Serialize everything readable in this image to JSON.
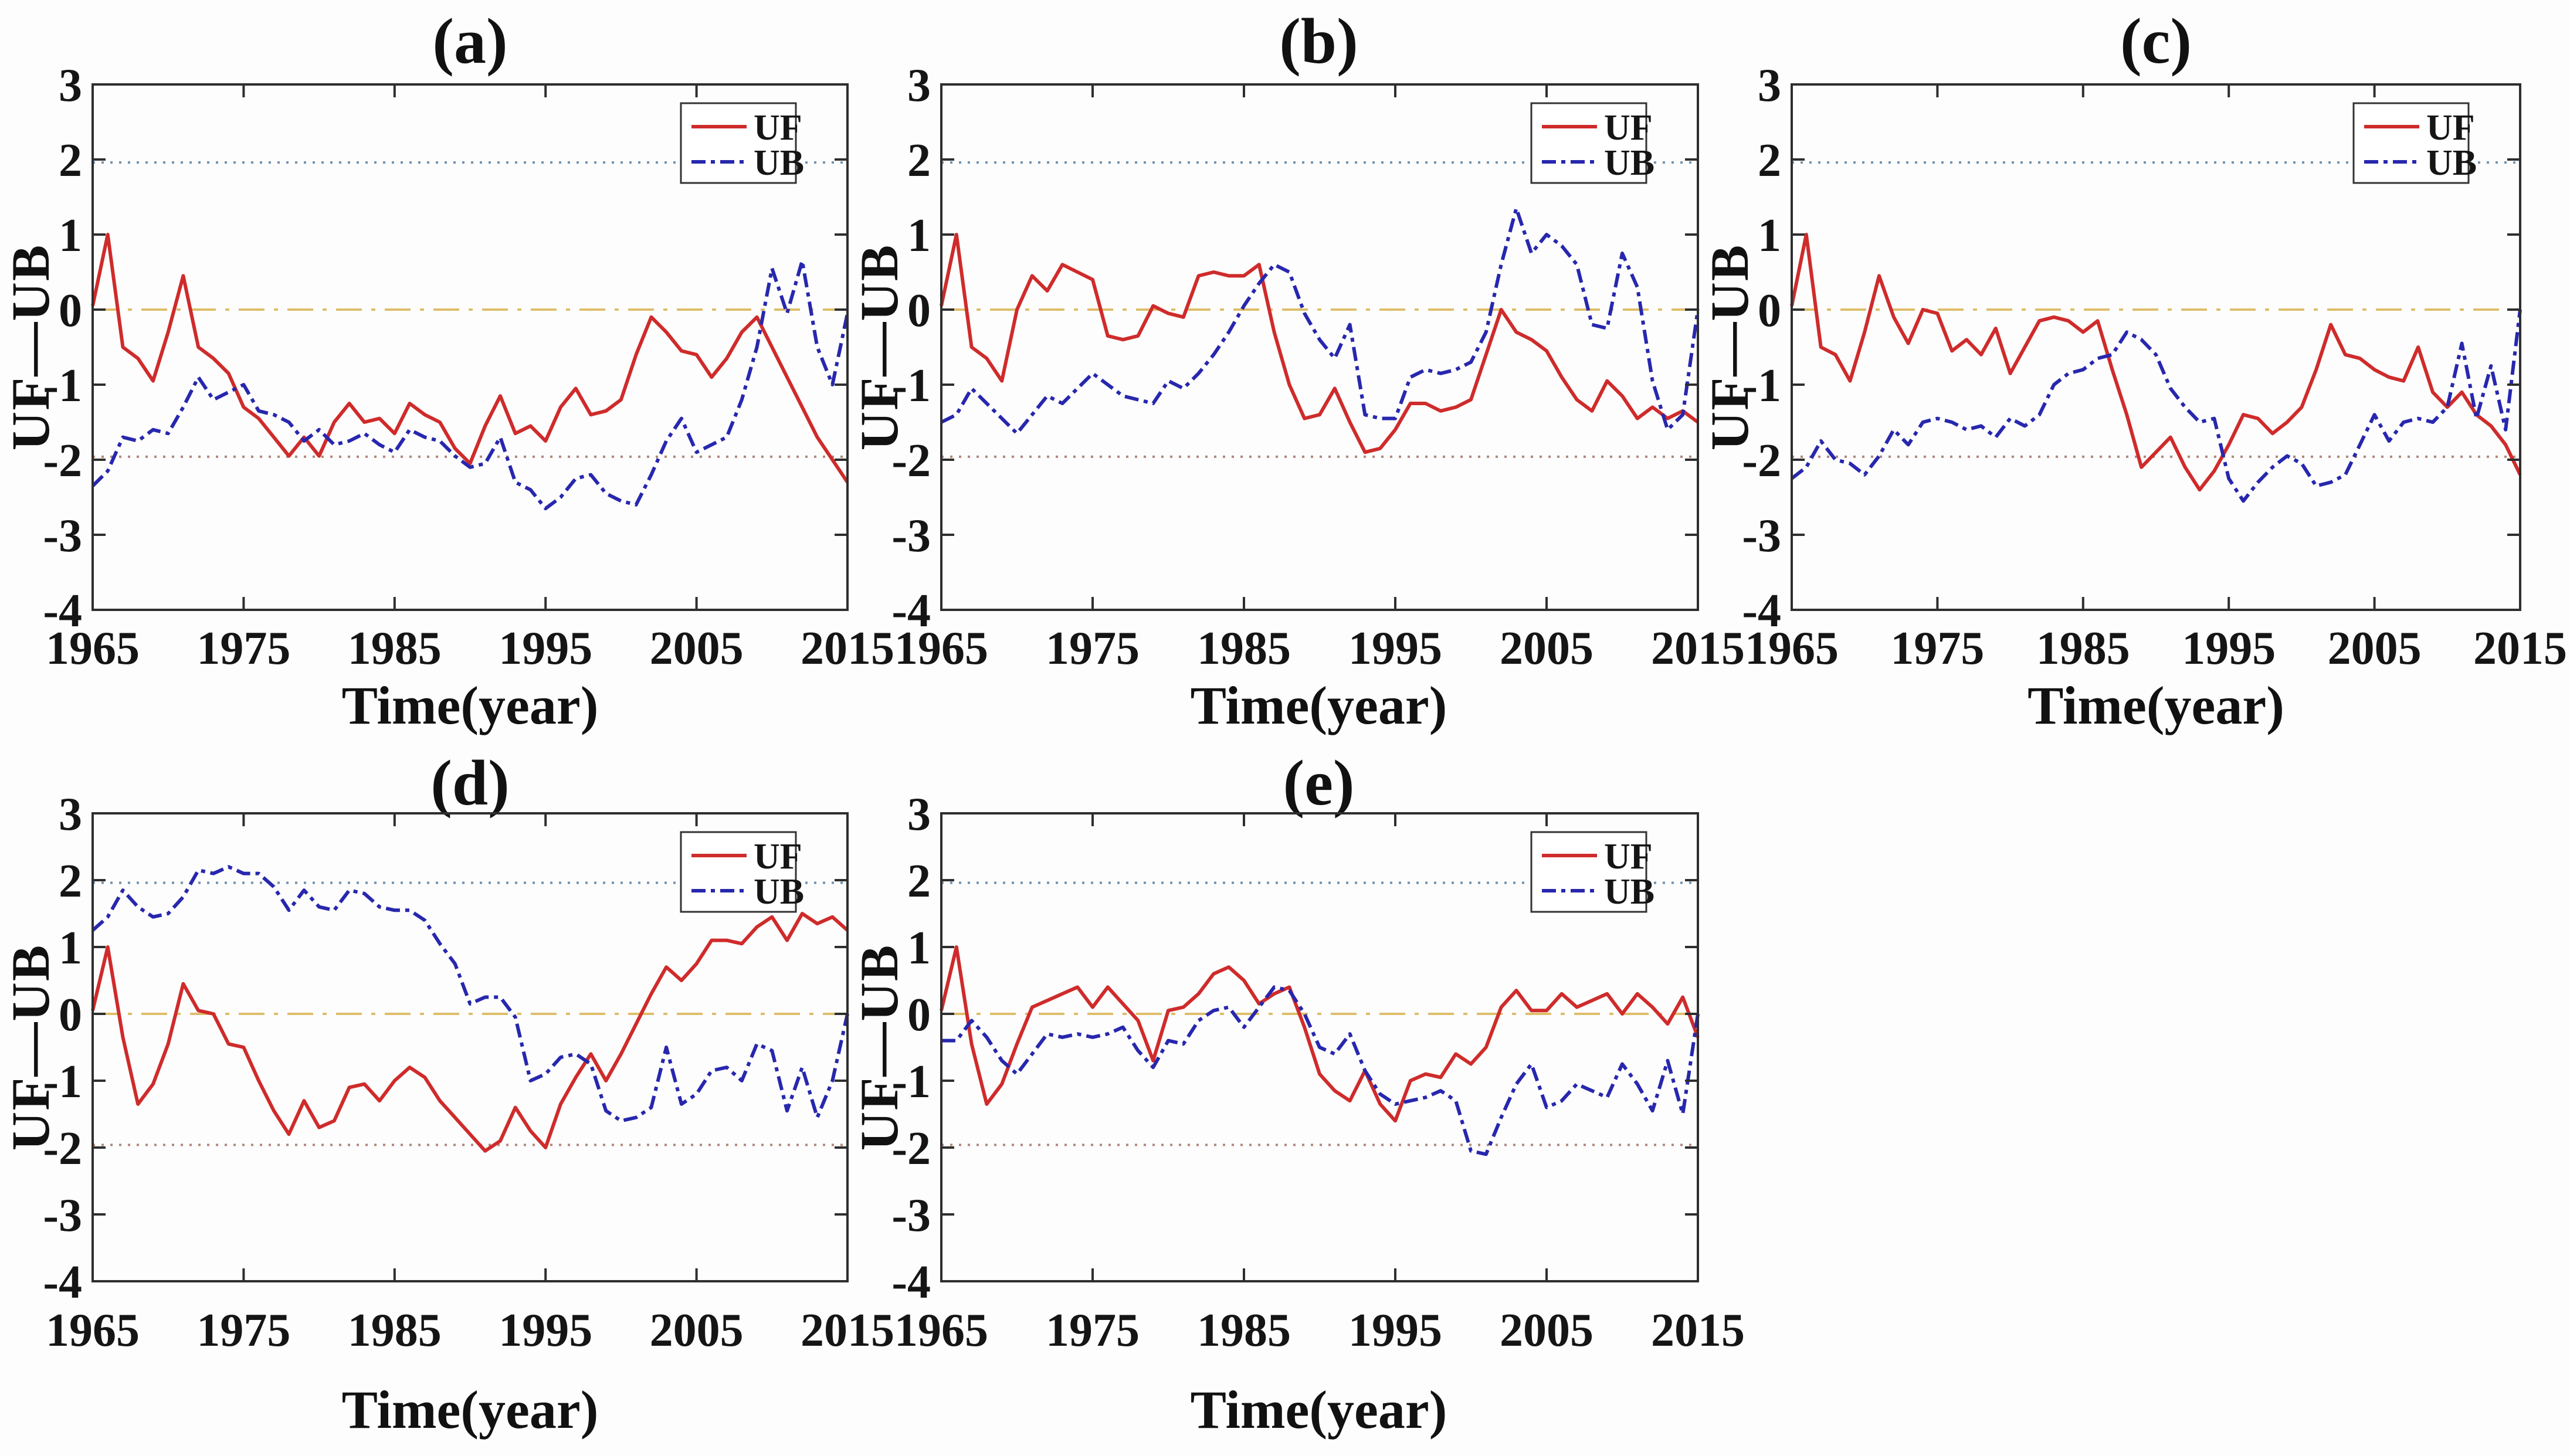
{
  "figure": {
    "background": "#fdfdfd",
    "xlabel": "Time(year)",
    "ylabel": "UF—UB",
    "legend_labels": [
      "UF",
      "UB"
    ],
    "colors": {
      "uf": "#cf2b2b",
      "ub": "#2727ae",
      "zero_line": "#ddbe6a",
      "upper_ref": "#7191ae",
      "lower_ref": "#b08878",
      "axis": "#2e2e2e",
      "text": "#151515",
      "legend_border": "#333333",
      "legend_bg": "#ffffff"
    },
    "axes": {
      "xlim": [
        1965,
        2015
      ],
      "ylim": [
        -4,
        3
      ],
      "xticks": [
        1965,
        1975,
        1985,
        1995,
        2005,
        2015
      ],
      "yticks": [
        3,
        2,
        1,
        0,
        -1,
        -2,
        -3,
        -4
      ],
      "ref_lines": [
        1.96,
        0,
        -1.96
      ],
      "grid": false
    },
    "panels": [
      {
        "label": "(a)"
      },
      {
        "label": "(b)"
      },
      {
        "label": "(c)"
      },
      {
        "label": "(d)"
      },
      {
        "label": "(e)"
      }
    ]
  },
  "chart_data": [
    {
      "type": "line",
      "title": "(a)",
      "xlabel": "Time(year)",
      "ylabel": "UF—UB",
      "xlim": [
        1965,
        2015
      ],
      "ylim": [
        -4,
        3
      ],
      "xticks": [
        1965,
        1975,
        1985,
        1995,
        2005,
        2015
      ],
      "yticks": [
        3,
        2,
        1,
        0,
        -1,
        -2,
        -3,
        -4
      ],
      "ref_lines": [
        1.96,
        0,
        -1.96
      ],
      "legend_position": "top-right",
      "x": [
        1965,
        1966,
        1967,
        1968,
        1969,
        1970,
        1971,
        1972,
        1973,
        1974,
        1975,
        1976,
        1977,
        1978,
        1979,
        1980,
        1981,
        1982,
        1983,
        1984,
        1985,
        1986,
        1987,
        1988,
        1989,
        1990,
        1991,
        1992,
        1993,
        1994,
        1995,
        1996,
        1997,
        1998,
        1999,
        2000,
        2001,
        2002,
        2003,
        2004,
        2005,
        2006,
        2007,
        2008,
        2009,
        2010,
        2011,
        2012,
        2013,
        2014,
        2015
      ],
      "series": [
        {
          "name": "UF",
          "style": "solid",
          "color": "#cf2b2b",
          "values": [
            0.05,
            1.0,
            -0.5,
            -0.65,
            -0.95,
            -0.3,
            0.45,
            -0.5,
            -0.65,
            -0.85,
            -1.3,
            -1.45,
            -1.7,
            -1.95,
            -1.7,
            -1.95,
            -1.5,
            -1.25,
            -1.5,
            -1.45,
            -1.65,
            -1.25,
            -1.4,
            -1.5,
            -1.85,
            -2.05,
            -1.55,
            -1.15,
            -1.65,
            -1.55,
            -1.75,
            -1.3,
            -1.05,
            -1.4,
            -1.35,
            -1.2,
            -0.6,
            -0.1,
            -0.3,
            -0.55,
            -0.6,
            -0.9,
            -0.65,
            -0.3,
            -0.1,
            -0.5,
            -0.9,
            -1.3,
            -1.7,
            -2.0,
            -2.3
          ]
        },
        {
          "name": "UB",
          "style": "dash-dot",
          "color": "#2727ae",
          "values": [
            -2.35,
            -2.15,
            -1.7,
            -1.75,
            -1.6,
            -1.65,
            -1.3,
            -0.9,
            -1.2,
            -1.1,
            -1.0,
            -1.35,
            -1.4,
            -1.5,
            -1.75,
            -1.6,
            -1.8,
            -1.75,
            -1.65,
            -1.8,
            -1.9,
            -1.6,
            -1.7,
            -1.75,
            -1.95,
            -2.1,
            -2.05,
            -1.7,
            -2.3,
            -2.4,
            -2.65,
            -2.5,
            -2.25,
            -2.2,
            -2.45,
            -2.55,
            -2.6,
            -2.2,
            -1.75,
            -1.45,
            -1.9,
            -1.8,
            -1.7,
            -1.2,
            -0.5,
            0.55,
            -0.05,
            0.65,
            -0.5,
            -1.0,
            -0.05
          ]
        }
      ]
    },
    {
      "type": "line",
      "title": "(b)",
      "xlabel": "Time(year)",
      "ylabel": "UF—UB",
      "xlim": [
        1965,
        2015
      ],
      "ylim": [
        -4,
        3
      ],
      "xticks": [
        1965,
        1975,
        1985,
        1995,
        2005,
        2015
      ],
      "yticks": [
        3,
        2,
        1,
        0,
        -1,
        -2,
        -3,
        -4
      ],
      "ref_lines": [
        1.96,
        0,
        -1.96
      ],
      "legend_position": "top-right",
      "x": [
        1965,
        1966,
        1967,
        1968,
        1969,
        1970,
        1971,
        1972,
        1973,
        1974,
        1975,
        1976,
        1977,
        1978,
        1979,
        1980,
        1981,
        1982,
        1983,
        1984,
        1985,
        1986,
        1987,
        1988,
        1989,
        1990,
        1991,
        1992,
        1993,
        1994,
        1995,
        1996,
        1997,
        1998,
        1999,
        2000,
        2001,
        2002,
        2003,
        2004,
        2005,
        2006,
        2007,
        2008,
        2009,
        2010,
        2011,
        2012,
        2013,
        2014,
        2015
      ],
      "series": [
        {
          "name": "UF",
          "style": "solid",
          "color": "#cf2b2b",
          "values": [
            0.05,
            1.0,
            -0.5,
            -0.65,
            -0.95,
            0.0,
            0.45,
            0.25,
            0.6,
            0.5,
            0.4,
            -0.35,
            -0.4,
            -0.35,
            0.05,
            -0.05,
            -0.1,
            0.45,
            0.5,
            0.45,
            0.45,
            0.6,
            -0.3,
            -1.0,
            -1.45,
            -1.4,
            -1.05,
            -1.5,
            -1.9,
            -1.85,
            -1.6,
            -1.25,
            -1.25,
            -1.35,
            -1.3,
            -1.2,
            -0.6,
            0.0,
            -0.3,
            -0.4,
            -0.55,
            -0.9,
            -1.2,
            -1.35,
            -0.95,
            -1.15,
            -1.45,
            -1.3,
            -1.45,
            -1.35,
            -1.5
          ]
        },
        {
          "name": "UB",
          "style": "dash-dot",
          "color": "#2727ae",
          "values": [
            -1.5,
            -1.4,
            -1.05,
            -1.25,
            -1.45,
            -1.65,
            -1.4,
            -1.15,
            -1.25,
            -1.05,
            -0.85,
            -1.0,
            -1.15,
            -1.2,
            -1.25,
            -0.95,
            -1.05,
            -0.85,
            -0.6,
            -0.3,
            0.05,
            0.35,
            0.6,
            0.5,
            -0.05,
            -0.4,
            -0.65,
            -0.2,
            -1.4,
            -1.45,
            -1.45,
            -0.9,
            -0.8,
            -0.85,
            -0.8,
            -0.7,
            -0.3,
            0.6,
            1.35,
            0.75,
            1.0,
            0.85,
            0.6,
            -0.2,
            -0.25,
            0.75,
            0.3,
            -0.95,
            -1.6,
            -1.4,
            0.0
          ]
        }
      ]
    },
    {
      "type": "line",
      "title": "(c)",
      "xlabel": "Time(year)",
      "ylabel": "UF—UB",
      "xlim": [
        1965,
        2015
      ],
      "ylim": [
        -4,
        3
      ],
      "xticks": [
        1965,
        1975,
        1985,
        1995,
        2005,
        2015
      ],
      "yticks": [
        3,
        2,
        1,
        0,
        -1,
        -2,
        -3,
        -4
      ],
      "ref_lines": [
        1.96,
        0,
        -1.96
      ],
      "legend_position": "top-right",
      "x": [
        1965,
        1966,
        1967,
        1968,
        1969,
        1970,
        1971,
        1972,
        1973,
        1974,
        1975,
        1976,
        1977,
        1978,
        1979,
        1980,
        1981,
        1982,
        1983,
        1984,
        1985,
        1986,
        1987,
        1988,
        1989,
        1990,
        1991,
        1992,
        1993,
        1994,
        1995,
        1996,
        1997,
        1998,
        1999,
        2000,
        2001,
        2002,
        2003,
        2004,
        2005,
        2006,
        2007,
        2008,
        2009,
        2010,
        2011,
        2012,
        2013,
        2014,
        2015
      ],
      "series": [
        {
          "name": "UF",
          "style": "solid",
          "color": "#cf2b2b",
          "values": [
            0.05,
            1.0,
            -0.5,
            -0.6,
            -0.95,
            -0.3,
            0.45,
            -0.1,
            -0.45,
            0.0,
            -0.05,
            -0.55,
            -0.4,
            -0.6,
            -0.25,
            -0.85,
            -0.5,
            -0.15,
            -0.1,
            -0.15,
            -0.3,
            -0.15,
            -0.8,
            -1.4,
            -2.1,
            -1.9,
            -1.7,
            -2.1,
            -2.4,
            -2.15,
            -1.8,
            -1.4,
            -1.45,
            -1.65,
            -1.5,
            -1.3,
            -0.8,
            -0.2,
            -0.6,
            -0.65,
            -0.8,
            -0.9,
            -0.95,
            -0.5,
            -1.1,
            -1.3,
            -1.1,
            -1.4,
            -1.55,
            -1.8,
            -2.2
          ]
        },
        {
          "name": "UB",
          "style": "dash-dot",
          "color": "#2727ae",
          "values": [
            -2.25,
            -2.1,
            -1.75,
            -2.0,
            -2.05,
            -2.2,
            -1.95,
            -1.6,
            -1.8,
            -1.5,
            -1.45,
            -1.5,
            -1.6,
            -1.55,
            -1.7,
            -1.45,
            -1.55,
            -1.4,
            -1.0,
            -0.85,
            -0.8,
            -0.65,
            -0.6,
            -0.3,
            -0.4,
            -0.6,
            -1.05,
            -1.3,
            -1.5,
            -1.45,
            -2.25,
            -2.55,
            -2.3,
            -2.1,
            -1.95,
            -2.05,
            -2.35,
            -2.3,
            -2.2,
            -1.8,
            -1.4,
            -1.75,
            -1.5,
            -1.45,
            -1.5,
            -1.3,
            -0.45,
            -1.45,
            -0.75,
            -1.6,
            0.0
          ]
        }
      ]
    },
    {
      "type": "line",
      "title": "(d)",
      "xlabel": "Time(year)",
      "ylabel": "UF—UB",
      "xlim": [
        1965,
        2015
      ],
      "ylim": [
        -4,
        3
      ],
      "xticks": [
        1965,
        1975,
        1985,
        1995,
        2005,
        2015
      ],
      "yticks": [
        3,
        2,
        1,
        0,
        -1,
        -2,
        -3,
        -4
      ],
      "ref_lines": [
        1.96,
        0,
        -1.96
      ],
      "legend_position": "top-right",
      "x": [
        1965,
        1966,
        1967,
        1968,
        1969,
        1970,
        1971,
        1972,
        1973,
        1974,
        1975,
        1976,
        1977,
        1978,
        1979,
        1980,
        1981,
        1982,
        1983,
        1984,
        1985,
        1986,
        1987,
        1988,
        1989,
        1990,
        1991,
        1992,
        1993,
        1994,
        1995,
        1996,
        1997,
        1998,
        1999,
        2000,
        2001,
        2002,
        2003,
        2004,
        2005,
        2006,
        2007,
        2008,
        2009,
        2010,
        2011,
        2012,
        2013,
        2014,
        2015
      ],
      "series": [
        {
          "name": "UF",
          "style": "solid",
          "color": "#cf2b2b",
          "values": [
            0.05,
            1.0,
            -0.35,
            -1.35,
            -1.05,
            -0.45,
            0.45,
            0.05,
            0.0,
            -0.45,
            -0.5,
            -1.0,
            -1.45,
            -1.8,
            -1.3,
            -1.7,
            -1.6,
            -1.1,
            -1.05,
            -1.3,
            -1.0,
            -0.8,
            -0.95,
            -1.3,
            -1.55,
            -1.8,
            -2.05,
            -1.9,
            -1.4,
            -1.75,
            -2.0,
            -1.35,
            -0.95,
            -0.6,
            -1.0,
            -0.6,
            -0.15,
            0.3,
            0.7,
            0.5,
            0.75,
            1.1,
            1.1,
            1.05,
            1.3,
            1.45,
            1.1,
            1.5,
            1.35,
            1.45,
            1.25
          ]
        },
        {
          "name": "UB",
          "style": "dash-dot",
          "color": "#2727ae",
          "values": [
            1.25,
            1.45,
            1.85,
            1.6,
            1.45,
            1.5,
            1.75,
            2.15,
            2.1,
            2.2,
            2.1,
            2.1,
            1.9,
            1.55,
            1.85,
            1.6,
            1.55,
            1.85,
            1.8,
            1.6,
            1.55,
            1.55,
            1.4,
            1.05,
            0.75,
            0.15,
            0.25,
            0.25,
            -0.05,
            -1.0,
            -0.9,
            -0.65,
            -0.6,
            -0.75,
            -1.45,
            -1.6,
            -1.55,
            -1.4,
            -0.5,
            -1.35,
            -1.2,
            -0.85,
            -0.8,
            -1.0,
            -0.45,
            -0.55,
            -1.45,
            -0.8,
            -1.55,
            -1.0,
            0.0
          ]
        }
      ]
    },
    {
      "type": "line",
      "title": "(e)",
      "xlabel": "Time(year)",
      "ylabel": "UF—UB",
      "xlim": [
        1965,
        2015
      ],
      "ylim": [
        -4,
        3
      ],
      "xticks": [
        1965,
        1975,
        1985,
        1995,
        2005,
        2015
      ],
      "yticks": [
        3,
        2,
        1,
        0,
        -1,
        -2,
        -3,
        -4
      ],
      "ref_lines": [
        1.96,
        0,
        -1.96
      ],
      "legend_position": "top-right",
      "x": [
        1965,
        1966,
        1967,
        1968,
        1969,
        1970,
        1971,
        1972,
        1973,
        1974,
        1975,
        1976,
        1977,
        1978,
        1979,
        1980,
        1981,
        1982,
        1983,
        1984,
        1985,
        1986,
        1987,
        1988,
        1989,
        1990,
        1991,
        1992,
        1993,
        1994,
        1995,
        1996,
        1997,
        1998,
        1999,
        2000,
        2001,
        2002,
        2003,
        2004,
        2005,
        2006,
        2007,
        2008,
        2009,
        2010,
        2011,
        2012,
        2013,
        2014,
        2015
      ],
      "series": [
        {
          "name": "UF",
          "style": "solid",
          "color": "#cf2b2b",
          "values": [
            0.05,
            1.0,
            -0.45,
            -1.35,
            -1.05,
            -0.45,
            0.1,
            0.2,
            0.3,
            0.4,
            0.1,
            0.4,
            0.15,
            -0.1,
            -0.7,
            0.05,
            0.1,
            0.3,
            0.6,
            0.7,
            0.5,
            0.15,
            0.3,
            0.4,
            -0.2,
            -0.9,
            -1.15,
            -1.3,
            -0.85,
            -1.35,
            -1.6,
            -1.0,
            -0.9,
            -0.95,
            -0.6,
            -0.75,
            -0.5,
            0.1,
            0.35,
            0.05,
            0.05,
            0.3,
            0.1,
            0.2,
            0.3,
            0.0,
            0.3,
            0.1,
            -0.15,
            0.25,
            -0.35
          ]
        },
        {
          "name": "UB",
          "style": "dash-dot",
          "color": "#2727ae",
          "values": [
            -0.4,
            -0.4,
            -0.1,
            -0.35,
            -0.7,
            -0.9,
            -0.6,
            -0.3,
            -0.35,
            -0.3,
            -0.35,
            -0.3,
            -0.2,
            -0.55,
            -0.8,
            -0.4,
            -0.45,
            -0.1,
            0.05,
            0.1,
            -0.2,
            0.1,
            0.4,
            0.35,
            0.0,
            -0.5,
            -0.6,
            -0.3,
            -0.85,
            -1.2,
            -1.35,
            -1.3,
            -1.25,
            -1.15,
            -1.3,
            -2.05,
            -2.1,
            -1.55,
            -1.05,
            -0.75,
            -1.4,
            -1.3,
            -1.05,
            -1.15,
            -1.25,
            -0.75,
            -1.05,
            -1.45,
            -0.7,
            -1.5,
            0.0
          ]
        }
      ]
    }
  ]
}
